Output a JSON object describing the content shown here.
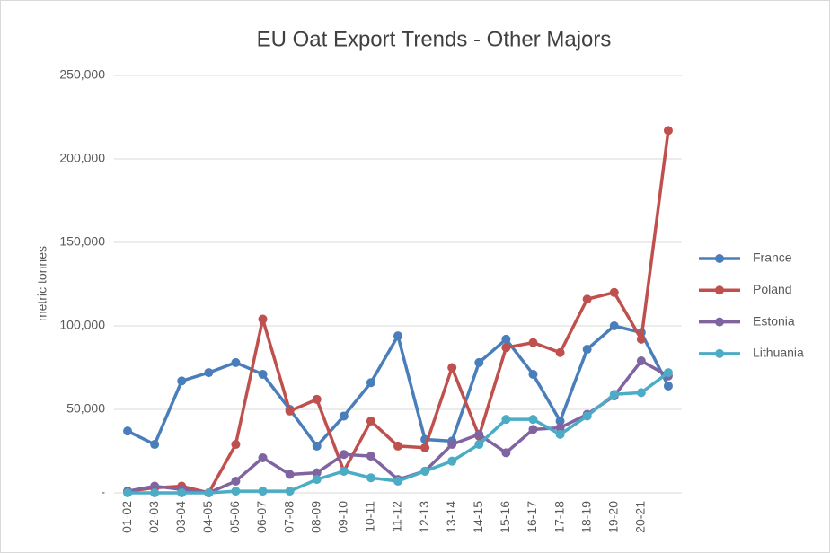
{
  "chart_data": {
    "type": "line",
    "title": "EU Oat Export Trends - Other Majors",
    "y_label": "metric tonnes",
    "categories": [
      "01-02",
      "02-03",
      "03-04",
      "04-05",
      "05-06",
      "06-07",
      "07-08",
      "08-09",
      "09-10",
      "10-11",
      "11-12",
      "12-13",
      "13-14",
      "14-15",
      "15-16",
      "16-17",
      "17-18",
      "18-19",
      "19-20",
      "20-21",
      null
    ],
    "series": [
      {
        "name": "France",
        "color": "#4a7ebb",
        "values": [
          37000,
          29000,
          67000,
          72000,
          78000,
          71000,
          50000,
          28000,
          46000,
          66000,
          94000,
          32000,
          31000,
          78000,
          92000,
          71000,
          43000,
          86000,
          100000,
          96000,
          64000
        ]
      },
      {
        "name": "Poland",
        "color": "#c0504d",
        "values": [
          1000,
          3000,
          4000,
          0,
          29000,
          104000,
          49000,
          56000,
          13000,
          43000,
          28000,
          27000,
          75000,
          34000,
          87000,
          90000,
          84000,
          116000,
          120000,
          92000,
          217000
        ]
      },
      {
        "name": "Estonia",
        "color": "#8064a2",
        "values": [
          1000,
          4000,
          2000,
          0,
          7000,
          21000,
          11000,
          12000,
          23000,
          22000,
          8000,
          13000,
          29000,
          35000,
          24000,
          38000,
          39000,
          47000,
          58000,
          79000,
          70000
        ]
      },
      {
        "name": "Lithuania",
        "color": "#4bacc6",
        "values": [
          0,
          0,
          0,
          0,
          1000,
          1000,
          1000,
          8000,
          13000,
          9000,
          7000,
          13000,
          19000,
          29000,
          44000,
          44000,
          35000,
          46000,
          59000,
          60000,
          72000
        ]
      }
    ],
    "ylim": [
      0,
      250000
    ],
    "yticks": [
      {
        "value": 0,
        "label": "-"
      },
      {
        "value": 50000,
        "label": "50,000"
      },
      {
        "value": 100000,
        "label": "100,000"
      },
      {
        "value": 150000,
        "label": "150,000"
      },
      {
        "value": 200000,
        "label": "200,000"
      },
      {
        "value": 250000,
        "label": "250,000"
      }
    ],
    "grid": true,
    "legend": "right"
  }
}
